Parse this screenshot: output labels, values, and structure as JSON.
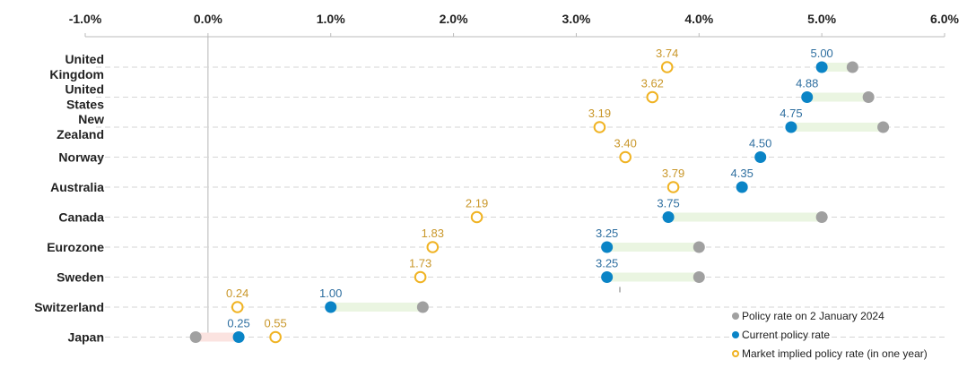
{
  "chart_data": {
    "type": "dumbbell",
    "title": "",
    "xlabel": "",
    "ylabel": "",
    "xlim": [
      -1.0,
      6.0
    ],
    "x_ticks": [
      "-1.0%",
      "0.0%",
      "1.0%",
      "2.0%",
      "3.0%",
      "4.0%",
      "5.0%",
      "6.0%"
    ],
    "x_tick_values": [
      -1,
      0,
      1,
      2,
      3,
      4,
      5,
      6
    ],
    "grid": "horizontal dashed",
    "legend_position": "bottom-right",
    "categories": [
      "United Kingdom",
      "United States",
      "New Zealand",
      "Norway",
      "Australia",
      "Canada",
      "Eurozone",
      "Sweden",
      "Switzerland",
      "Japan"
    ],
    "category_lines": [
      [
        "United",
        "Kingdom"
      ],
      [
        "United",
        "States"
      ],
      [
        "New",
        "Zealand"
      ],
      [
        "Norway"
      ],
      [
        "Australia"
      ],
      [
        "Canada"
      ],
      [
        "Eurozone"
      ],
      [
        "Sweden"
      ],
      [
        "Switzerland"
      ],
      [
        "Japan"
      ]
    ],
    "series": [
      {
        "name": "Policy rate on 2 January 2024",
        "color": "#a0a0a0",
        "marker": "filled-circle",
        "values": [
          5.25,
          5.38,
          5.5,
          4.5,
          4.35,
          5.0,
          4.0,
          4.0,
          1.75,
          -0.1
        ]
      },
      {
        "name": "Current policy rate",
        "color": "#0a84c6",
        "marker": "filled-circle",
        "values": [
          5.0,
          4.88,
          4.75,
          4.5,
          4.35,
          3.75,
          3.25,
          3.25,
          1.0,
          0.25
        ],
        "labels": [
          "5.00",
          "4.88",
          "4.75",
          "4.50",
          "4.35",
          "3.75",
          "3.25",
          "3.25",
          "1.00",
          "0.25"
        ]
      },
      {
        "name": "Market implied policy rate (in one year)",
        "color": "#f0b323",
        "marker": "hollow-circle",
        "values": [
          3.74,
          3.62,
          3.19,
          3.4,
          3.79,
          2.19,
          1.83,
          1.73,
          0.24,
          0.55
        ],
        "labels": [
          "3.74",
          "3.62",
          "3.19",
          "3.40",
          "3.79",
          "2.19",
          "1.83",
          "1.73",
          "0.24",
          "0.55"
        ]
      }
    ],
    "connector_colors": {
      "cut": "#eaf5e1",
      "hike": "#fbe3e0"
    }
  },
  "legend": {
    "items": [
      {
        "label": "Policy rate on 2 January 2024",
        "color": "#a0a0a0",
        "style": "filled"
      },
      {
        "label": "Current policy rate",
        "color": "#0a84c6",
        "style": "filled"
      },
      {
        "label": "Market implied policy rate (in one year)",
        "color": "#f0b323",
        "style": "hollow"
      }
    ]
  },
  "colors": {
    "implied_label": "#c9972a",
    "current_label": "#2f6fa0",
    "axis": "#bbbbbb",
    "grid": "#d6d6d6"
  }
}
